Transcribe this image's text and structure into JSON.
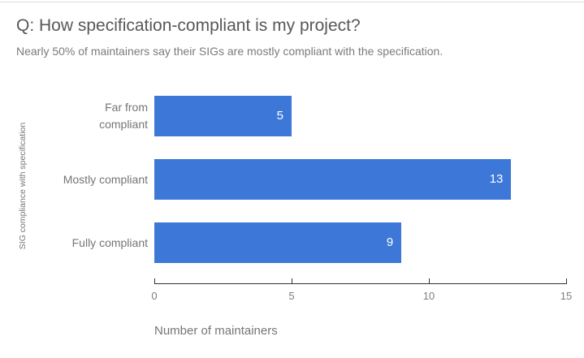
{
  "chart_data": {
    "type": "bar",
    "orientation": "horizontal",
    "title": "Q: How specification-compliant is my project?",
    "subtitle": "Nearly 50% of maintainers say their SIGs are mostly compliant with the specification.",
    "categories": [
      "Far from compliant",
      "Mostly compliant",
      "Fully compliant"
    ],
    "values": [
      5,
      13,
      9
    ],
    "value_labels_shown": true,
    "xlabel": "Number of maintainers",
    "ylabel": "SIG compliance with specification",
    "xlim": [
      0,
      15
    ],
    "xticks": [
      "0",
      "5",
      "10",
      "15"
    ],
    "grid": false,
    "legend": "none",
    "colors": {
      "bar": "#3d78d8",
      "value_label": "#ffffff",
      "axis_line": "#333333",
      "axis_text": "#757575",
      "tick_text": "#7e7e7e",
      "title": "#58585a",
      "subtitle": "#7b7b7b",
      "category_text": "#757575",
      "top_divider": "#dcdcdc"
    }
  }
}
